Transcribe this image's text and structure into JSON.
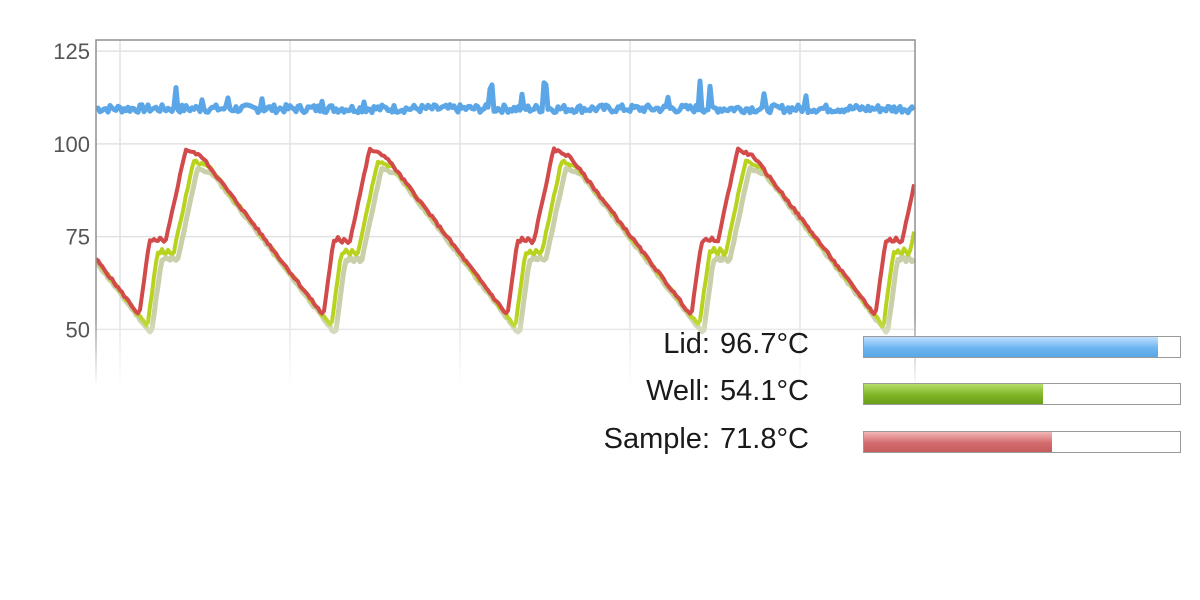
{
  "chart_data": {
    "type": "line",
    "title": "",
    "xlabel": "",
    "ylabel": "",
    "ylim": [
      35,
      128
    ],
    "yticks": [
      50,
      75,
      100,
      125
    ],
    "grid": true,
    "series": [
      {
        "key": "lid",
        "color": "#5aa6e6"
      },
      {
        "key": "well",
        "color": "#b8d21e"
      },
      {
        "key": "sample",
        "color": "#d24a4a"
      }
    ]
  },
  "readouts": [
    {
      "label": "Lid:",
      "value": "96.7°C",
      "level": 0.93,
      "color": "#5aa6e6"
    },
    {
      "label": "Well:",
      "value": "54.1°C",
      "level": 0.565,
      "color": "#7fb526"
    },
    {
      "label": "Sample:",
      "value": "71.8°C",
      "level": 0.595,
      "color": "#d36c6e"
    }
  ]
}
